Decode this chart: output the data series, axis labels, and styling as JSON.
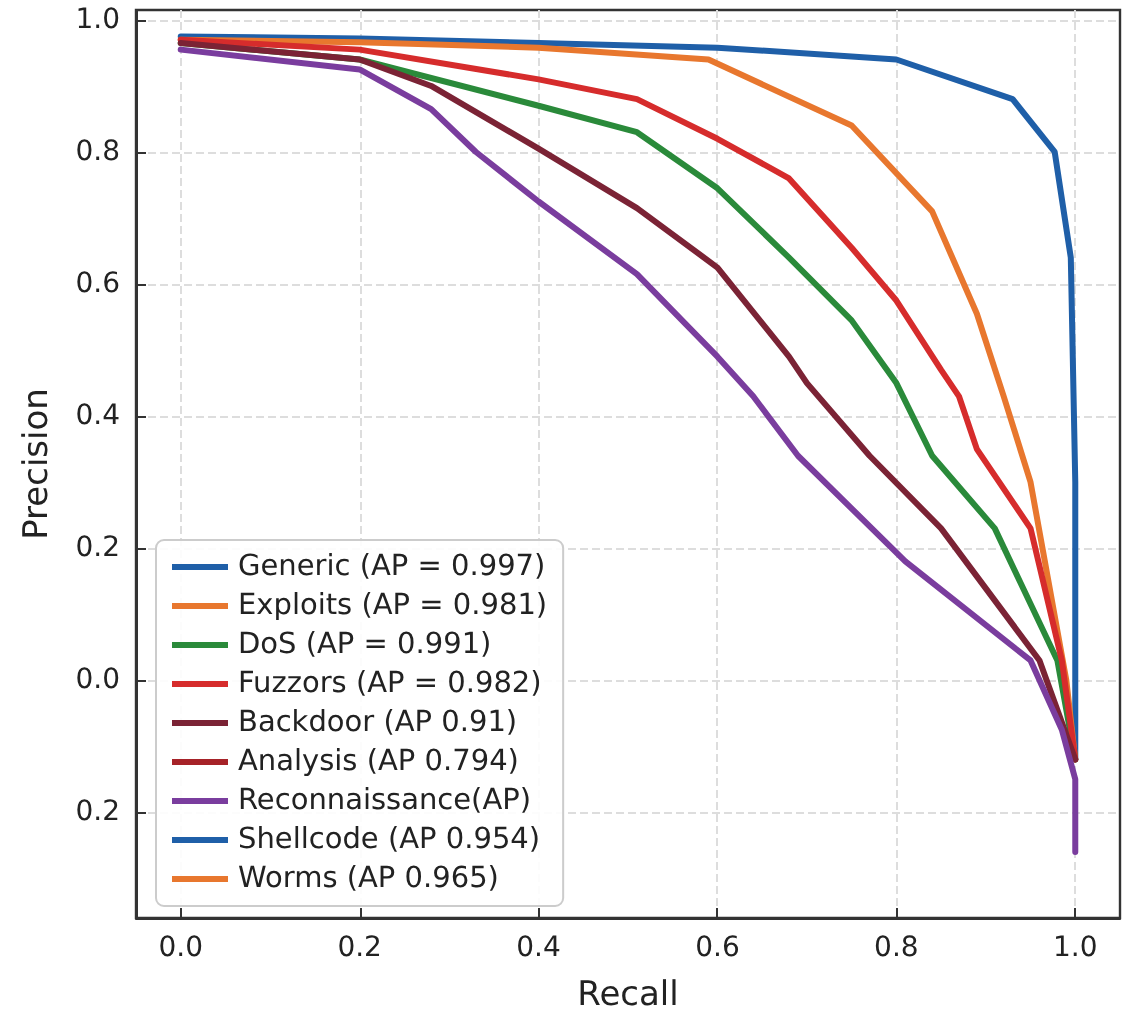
{
  "chart_data": {
    "type": "line",
    "xlabel": "Recall",
    "ylabel": "Precision",
    "xlim": [
      -0.05,
      1.05
    ],
    "ylim": [
      -0.36,
      1.015
    ],
    "xticks": [
      {
        "value": 0.0,
        "label": "0.0"
      },
      {
        "value": 0.2,
        "label": "0.2"
      },
      {
        "value": 0.4,
        "label": "0.4"
      },
      {
        "value": 0.6,
        "label": "0.6"
      },
      {
        "value": 0.8,
        "label": "0.8"
      },
      {
        "value": 1.0,
        "label": "1.0"
      }
    ],
    "yticks": [
      {
        "value": 1.0,
        "label": "1.0"
      },
      {
        "value": 0.8,
        "label": "0.8"
      },
      {
        "value": 0.6,
        "label": "0.6"
      },
      {
        "value": 0.4,
        "label": "0.4"
      },
      {
        "value": 0.2,
        "label": "0.2"
      },
      {
        "value": 0.0,
        "label": "0.0"
      },
      {
        "value": -0.2,
        "label": "0.2"
      }
    ],
    "grid": true,
    "legend": "bottom left",
    "marker": "none",
    "line_style": "solid",
    "series": [
      {
        "name": "Generic (AP = 0.997)",
        "color": "#1f5fa8",
        "x": [
          0,
          0.2,
          0.4,
          0.6,
          0.8,
          0.93,
          0.977,
          0.995,
          1.0,
          1.0
        ],
        "values": [
          0.975,
          0.972,
          0.965,
          0.958,
          0.94,
          0.88,
          0.8,
          0.64,
          0.3,
          -0.12
        ]
      },
      {
        "name": "Exploits (AP = 0.981)",
        "color": "#e8772e",
        "x": [
          0,
          0.2,
          0.4,
          0.59,
          0.75,
          0.84,
          0.89,
          0.92,
          0.95,
          0.99,
          1.0
        ],
        "values": [
          0.97,
          0.966,
          0.958,
          0.94,
          0.84,
          0.71,
          0.555,
          0.43,
          0.3,
          0.0,
          -0.12
        ]
      },
      {
        "name": "DoS (AP = 0.991)",
        "color": "#2a8a3a",
        "x": [
          0,
          0.2,
          0.4,
          0.51,
          0.6,
          0.68,
          0.75,
          0.8,
          0.84,
          0.91,
          0.98,
          1.0
        ],
        "values": [
          0.965,
          0.94,
          0.87,
          0.83,
          0.745,
          0.64,
          0.545,
          0.45,
          0.34,
          0.23,
          0.03,
          -0.12
        ]
      },
      {
        "name": "Fuzzors (AP = 0.982)",
        "color": "#d62c2c",
        "x": [
          0,
          0.2,
          0.4,
          0.51,
          0.6,
          0.68,
          0.75,
          0.8,
          0.85,
          0.87,
          0.89,
          0.95,
          0.985,
          1.0
        ],
        "values": [
          0.97,
          0.955,
          0.91,
          0.88,
          0.82,
          0.76,
          0.655,
          0.575,
          0.47,
          0.43,
          0.35,
          0.23,
          0.03,
          -0.12
        ]
      },
      {
        "name": "Backdoor (AP 0.91)",
        "color": "#7b2335",
        "x": [
          0,
          0.2,
          0.28,
          0.4,
          0.51,
          0.6,
          0.68,
          0.7,
          0.77,
          0.85,
          0.96,
          1.0
        ],
        "values": [
          0.965,
          0.94,
          0.9,
          0.805,
          0.715,
          0.625,
          0.49,
          0.45,
          0.34,
          0.23,
          0.03,
          -0.12
        ]
      },
      {
        "name": "Analysis (AP 0.794)",
        "color": "#a62228"
      },
      {
        "name": "Reconnaissance(AP)",
        "color": "#7a3d9e",
        "x": [
          0,
          0.2,
          0.28,
          0.33,
          0.4,
          0.51,
          0.6,
          0.64,
          0.69,
          0.81,
          0.95,
          0.985,
          1.0,
          1.0
        ],
        "values": [
          0.955,
          0.925,
          0.865,
          0.8,
          0.725,
          0.615,
          0.49,
          0.43,
          0.34,
          0.18,
          0.03,
          -0.075,
          -0.15,
          -0.26
        ]
      },
      {
        "name": "Shellcode (AP 0.954)",
        "color": "#1f5fa8"
      },
      {
        "name": "Worms (AP 0.965)",
        "color": "#e8772e"
      }
    ]
  }
}
